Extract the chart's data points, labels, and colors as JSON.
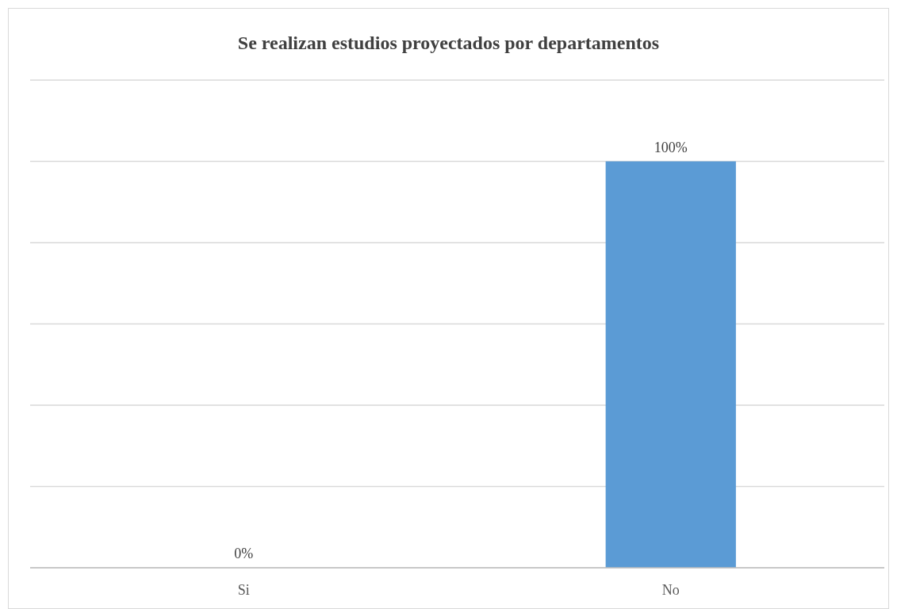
{
  "chart_data": {
    "type": "bar",
    "title": "Se realizan estudios proyectados por departamentos",
    "categories": [
      "Si",
      "No"
    ],
    "values": [
      0,
      100
    ],
    "value_labels": [
      "0%",
      "100%"
    ],
    "color": "#5b9bd5",
    "ylim": [
      0,
      120
    ],
    "yticks": [
      {
        "value": 0,
        "label": null
      },
      {
        "value": 20,
        "label": null
      },
      {
        "value": 40,
        "label": null
      },
      {
        "value": 60,
        "label": null
      },
      {
        "value": 80,
        "label": null
      },
      {
        "value": 100,
        "label": null
      },
      {
        "value": 120,
        "label": null
      }
    ],
    "grid": "y",
    "tick_labels": "x"
  }
}
